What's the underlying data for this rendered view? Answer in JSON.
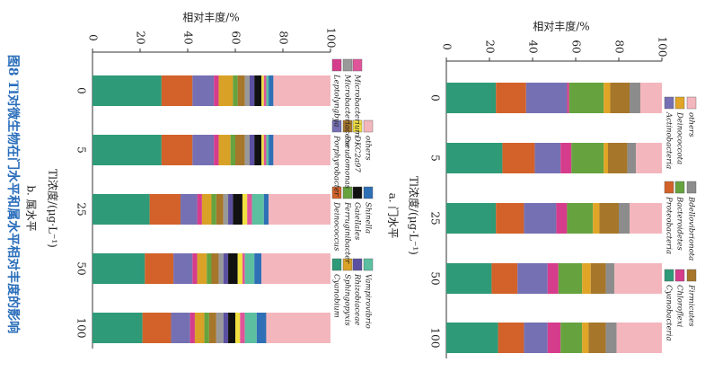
{
  "figure_caption": "图8  Tl对微生物在门水平和属水平相对丰度的影响",
  "chart_data": [
    {
      "type": "bar",
      "stacked": true,
      "orientation": "horizontal",
      "title": "a. 门水平",
      "xlabel": "相对丰度/%",
      "ylabel": "Tl浓度/(μg·L⁻¹)",
      "categories": [
        "0",
        "5",
        "25",
        "50",
        "100"
      ],
      "xlim": [
        0,
        100
      ],
      "xticks": [
        0,
        20,
        40,
        60,
        80,
        100
      ],
      "series": [
        {
          "name": "Cyanobacteria",
          "color": "#2e9a78",
          "values": [
            23,
            26,
            23,
            21,
            24
          ]
        },
        {
          "name": "Proteobacteria",
          "color": "#d2622a",
          "values": [
            14,
            15,
            13,
            12,
            12
          ]
        },
        {
          "name": "Actinobacteria",
          "color": "#7570b3",
          "values": [
            19,
            12,
            15,
            14,
            11
          ]
        },
        {
          "name": "Chloroflexi",
          "color": "#d63c8c",
          "values": [
            1,
            5,
            5,
            5,
            6
          ]
        },
        {
          "name": "Bacteroidetes",
          "color": "#66a33f",
          "values": [
            16,
            15,
            12,
            11,
            10
          ]
        },
        {
          "name": "Deinococcota",
          "color": "#e0a526",
          "values": [
            3,
            2,
            3,
            4,
            3
          ]
        },
        {
          "name": "Firmicutes",
          "color": "#a6762a",
          "values": [
            9,
            9,
            9,
            7,
            8
          ]
        },
        {
          "name": "Bdellovibrionota",
          "color": "#8c8c8c",
          "values": [
            5,
            4,
            5,
            4,
            5
          ]
        },
        {
          "name": "others",
          "color": "#f4b6bd",
          "values": [
            10,
            12,
            15,
            22,
            21
          ]
        }
      ]
    },
    {
      "type": "bar",
      "stacked": true,
      "orientation": "horizontal",
      "title": "b. 属水平",
      "xlabel": "相对丰度/%",
      "ylabel": "Tl浓度/(μg·L⁻¹)",
      "categories": [
        "0",
        "5",
        "25",
        "50",
        "100"
      ],
      "xlim": [
        0,
        100
      ],
      "xticks": [
        0,
        20,
        40,
        60,
        80,
        100
      ],
      "series": [
        {
          "name": "Cyanobium",
          "color": "#2e9a78",
          "values": [
            29,
            29,
            24,
            22,
            21
          ]
        },
        {
          "name": "Deinococcus",
          "color": "#d2622a",
          "values": [
            13,
            13,
            13,
            12,
            12
          ]
        },
        {
          "name": "Porphyrobacter",
          "color": "#7570b3",
          "values": [
            9,
            9,
            7,
            8,
            8
          ]
        },
        {
          "name": "Leptolyngbya",
          "color": "#d63c8c",
          "values": [
            2,
            2,
            2,
            2,
            2
          ]
        },
        {
          "name": "Sphingopyxis",
          "color": "#d9a227",
          "values": [
            6,
            5,
            4,
            4,
            4
          ]
        },
        {
          "name": "Ferruginibacter",
          "color": "#66a33f",
          "values": [
            2,
            2,
            2,
            2,
            2
          ]
        },
        {
          "name": "Pseudomonas",
          "color": "#a6762a",
          "values": [
            3,
            4,
            3,
            3,
            3
          ]
        },
        {
          "name": "Microbacteriaceae",
          "color": "#999999",
          "values": [
            2,
            2,
            2,
            2,
            3
          ]
        },
        {
          "name": "Rhizobiaceae",
          "color": "#5b4fa0",
          "values": [
            2,
            2,
            2,
            2,
            2
          ]
        },
        {
          "name": "Gaiellales",
          "color": "#111111",
          "values": [
            3,
            3,
            4,
            4,
            3
          ]
        },
        {
          "name": "DKC2a97",
          "color": "#f0e040",
          "values": [
            1,
            1,
            2,
            2,
            2
          ]
        },
        {
          "name": "Microbacterium",
          "color": "#e0559a",
          "values": [
            1,
            1,
            2,
            1,
            2
          ]
        },
        {
          "name": "Vampirovibrio",
          "color": "#5cc0a0",
          "values": [
            1,
            1,
            5,
            4,
            5
          ]
        },
        {
          "name": "Shinella",
          "color": "#2f6fb5",
          "values": [
            2,
            2,
            2,
            3,
            4
          ]
        },
        {
          "name": "others",
          "color": "#f4b6bd",
          "values": [
            24,
            24,
            26,
            29,
            27
          ]
        }
      ]
    }
  ]
}
